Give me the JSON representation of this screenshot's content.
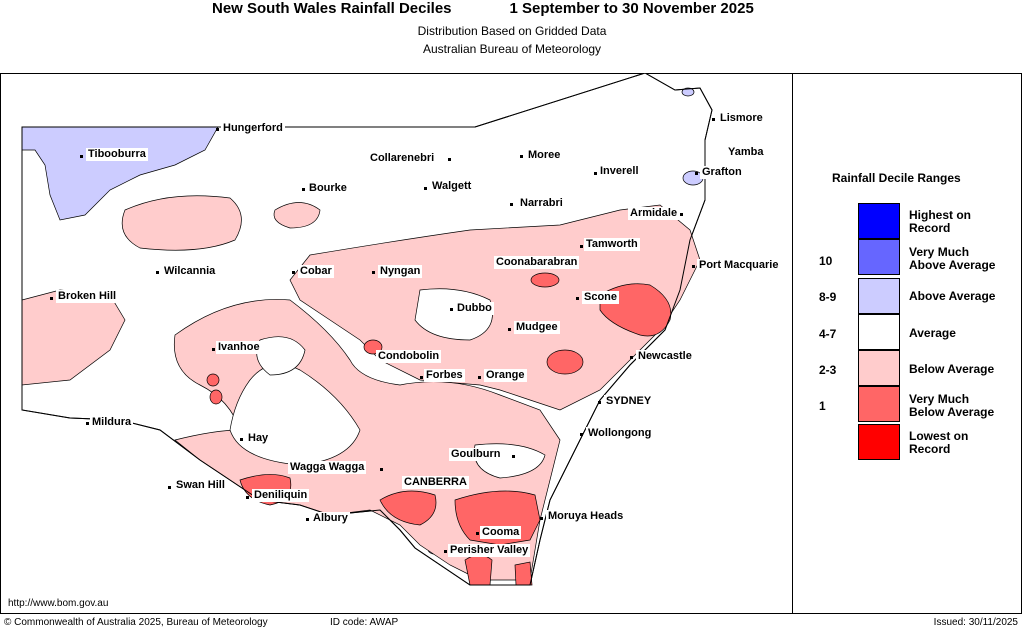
{
  "header": {
    "title": "New South Wales Rainfall Deciles",
    "period": "1 September to 30 November 2025",
    "subtitle1": "Distribution Based on Gridded Data",
    "subtitle2": "Australian Bureau of Meteorology"
  },
  "legend": {
    "title": "Rainfall Decile Ranges",
    "items": [
      {
        "label1": "Highest on",
        "label2": "Record",
        "range": "",
        "color": "#0000ff"
      },
      {
        "label1": "Very Much",
        "label2": "Above Average",
        "range": "10",
        "color": "#6666ff"
      },
      {
        "label1": "Above Average",
        "label2": "",
        "range": "8-9",
        "color": "#ccccff"
      },
      {
        "label1": "Average",
        "label2": "",
        "range": "4-7",
        "color": "#ffffff"
      },
      {
        "label1": "Below Average",
        "label2": "",
        "range": "2-3",
        "color": "#ffcccc"
      },
      {
        "label1": "Very Much",
        "label2": "Below Average",
        "range": "1",
        "color": "#ff6666"
      },
      {
        "label1": "Lowest on",
        "label2": "Record",
        "range": "",
        "color": "#ff0000"
      }
    ]
  },
  "towns": {
    "hungerford": "Hungerford",
    "lismore": "Lismore",
    "tibooburra": "Tibooburra",
    "collarenebri": "Collarenebri",
    "moree": "Moree",
    "yamba": "Yamba",
    "inverell": "Inverell",
    "grafton": "Grafton",
    "bourke": "Bourke",
    "walgett": "Walgett",
    "narrabri": "Narrabri",
    "armidale": "Armidale",
    "tamworth": "Tamworth",
    "wilcannia": "Wilcannia",
    "cobar": "Cobar",
    "nyngan": "Nyngan",
    "coonabarabran": "Coonabarabran",
    "port_macquarie": "Port Macquarie",
    "broken_hill": "Broken Hill",
    "scone": "Scone",
    "dubbo": "Dubbo",
    "mudgee": "Mudgee",
    "ivanhoe": "Ivanhoe",
    "condobolin": "Condobolin",
    "newcastle": "Newcastle",
    "forbes": "Forbes",
    "orange": "Orange",
    "sydney": "SYDNEY",
    "mildura": "Mildura",
    "hay": "Hay",
    "wollongong": "Wollongong",
    "goulburn": "Goulburn",
    "wagga": "Wagga Wagga",
    "swan_hill": "Swan Hill",
    "canberra": "CANBERRA",
    "deniliquin": "Deniliquin",
    "albury": "Albury",
    "moruya": "Moruya Heads",
    "cooma": "Cooma",
    "perisher": "Perisher Valley"
  },
  "footer": {
    "url": "http://www.bom.gov.au",
    "copyright": "© Commonwealth of Australia 2025, Bureau of Meteorology",
    "id_code": "ID code: AWAP",
    "issued": "Issued: 30/11/2025"
  }
}
